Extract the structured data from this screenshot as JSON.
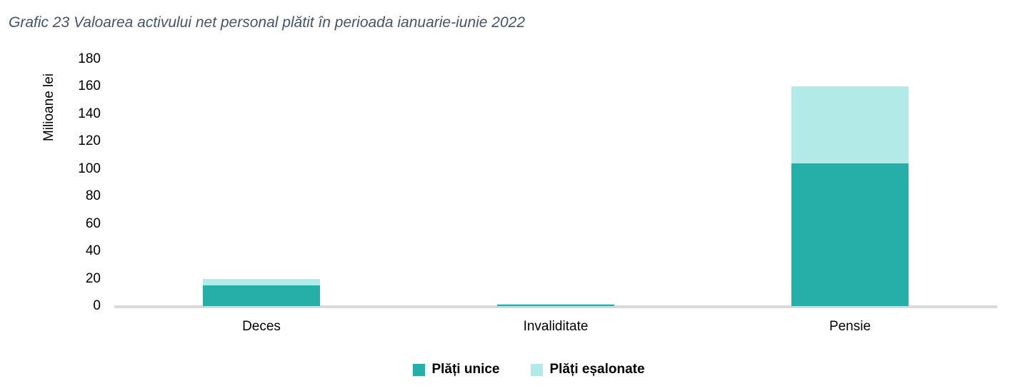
{
  "colors": {
    "title": "#44546A",
    "axis_line": "#D9D9D9",
    "text": "#000000",
    "unice": "#26AFA9",
    "esalonate": "#B2EAE7"
  },
  "chart_data": {
    "type": "bar",
    "stacked": true,
    "title": "Grafic 23 Valoarea activului net personal plătit în perioada ianuarie-iunie 2022",
    "ylabel": "Milioane lei",
    "xlabel": "",
    "categories": [
      "Deces",
      "Invaliditate",
      "Pensie"
    ],
    "series": [
      {
        "name": "Plăți unice",
        "color": "#26AFA9",
        "values": [
          15,
          1,
          104
        ]
      },
      {
        "name": "Plăți eșalonate",
        "color": "#B2EAE7",
        "values": [
          5,
          0.5,
          56
        ]
      }
    ],
    "ylim": [
      0,
      180
    ],
    "ytick_step": 20,
    "grid": false,
    "legend_position": "bottom"
  }
}
